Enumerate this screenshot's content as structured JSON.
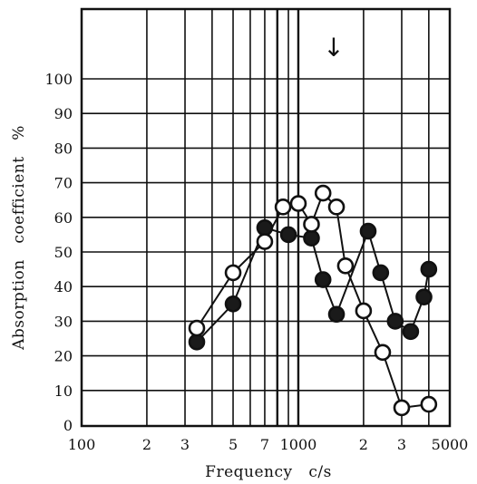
{
  "chart_data": {
    "type": "line",
    "title": "",
    "xlabel": "Frequency   c/s",
    "ylabel": "Absorption   coefficient   %",
    "x_scale": "log",
    "xlim": [
      100,
      5000
    ],
    "ylim": [
      0,
      100
    ],
    "grid": true,
    "x_tick_labels": [
      "100",
      "2",
      "3",
      "5",
      "7",
      "1000",
      "2",
      "3",
      "5000"
    ],
    "y_tick_labels": [
      "0",
      "10",
      "20",
      "30",
      "40",
      "50",
      "60",
      "70",
      "80",
      "90",
      "100"
    ],
    "annotation": "↓",
    "series": [
      {
        "marker": "open-circle",
        "x": [
          340,
          500,
          700,
          850,
          1000,
          1150,
          1300,
          1500,
          1650,
          2000,
          2450,
          3000,
          4000
        ],
        "y": [
          28,
          44,
          53,
          63,
          64,
          58,
          67,
          63,
          46,
          33,
          21,
          5,
          6
        ]
      },
      {
        "marker": "filled-circle",
        "x": [
          340,
          500,
          700,
          900,
          1150,
          1300,
          1500,
          2100,
          2400,
          2800,
          3300,
          3800,
          4000
        ],
        "y": [
          24,
          35,
          57,
          55,
          54,
          42,
          32,
          56,
          44,
          30,
          27,
          37,
          45
        ]
      }
    ]
  }
}
